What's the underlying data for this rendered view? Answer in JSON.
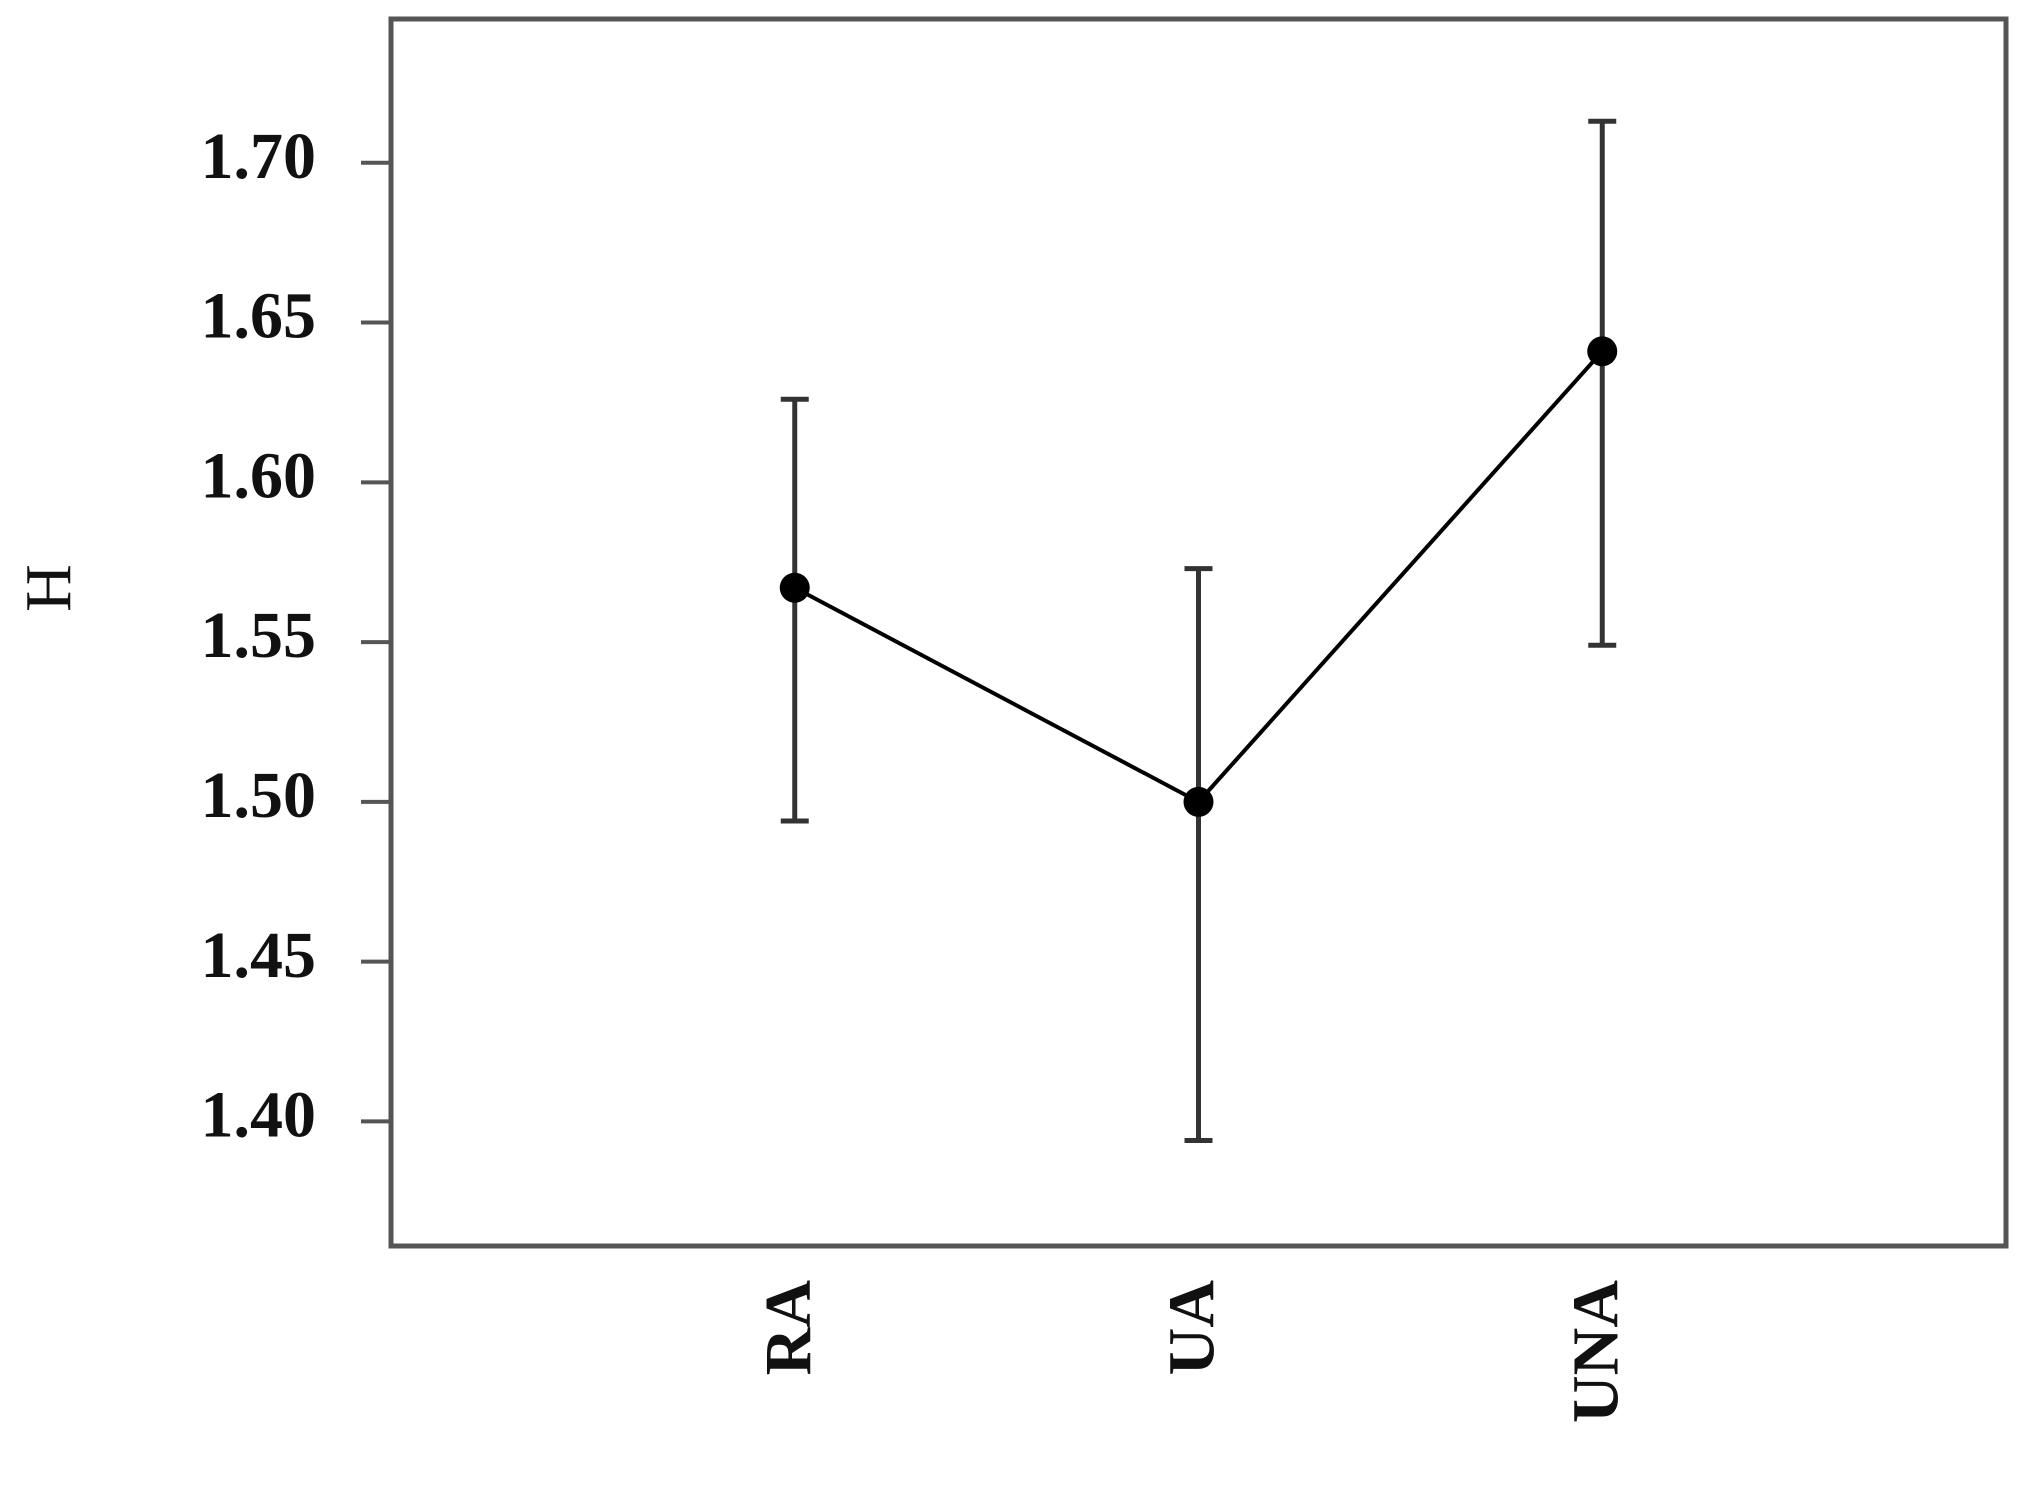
{
  "chart_data": {
    "type": "line",
    "y_label": "H",
    "categories": [
      "RA",
      "UA",
      "UNA"
    ],
    "series": [
      {
        "color": "#000000",
        "values": [
          1.567,
          1.5,
          1.641
        ]
      }
    ],
    "error_bars": {
      "lower": [
        1.494,
        1.394,
        1.549
      ],
      "upper": [
        1.626,
        1.573,
        1.713
      ]
    },
    "ylim": [
      1.361,
      1.745
    ],
    "yticks": [
      {
        "value": 1.4,
        "label": "1.40"
      },
      {
        "value": 1.45,
        "label": "1.45"
      },
      {
        "value": 1.5,
        "label": "1.50"
      },
      {
        "value": 1.55,
        "label": "1.55"
      },
      {
        "value": 1.6,
        "label": "1.60"
      },
      {
        "value": 1.65,
        "label": "1.65"
      },
      {
        "value": 1.7,
        "label": "1.70"
      }
    ],
    "grid": false
  }
}
